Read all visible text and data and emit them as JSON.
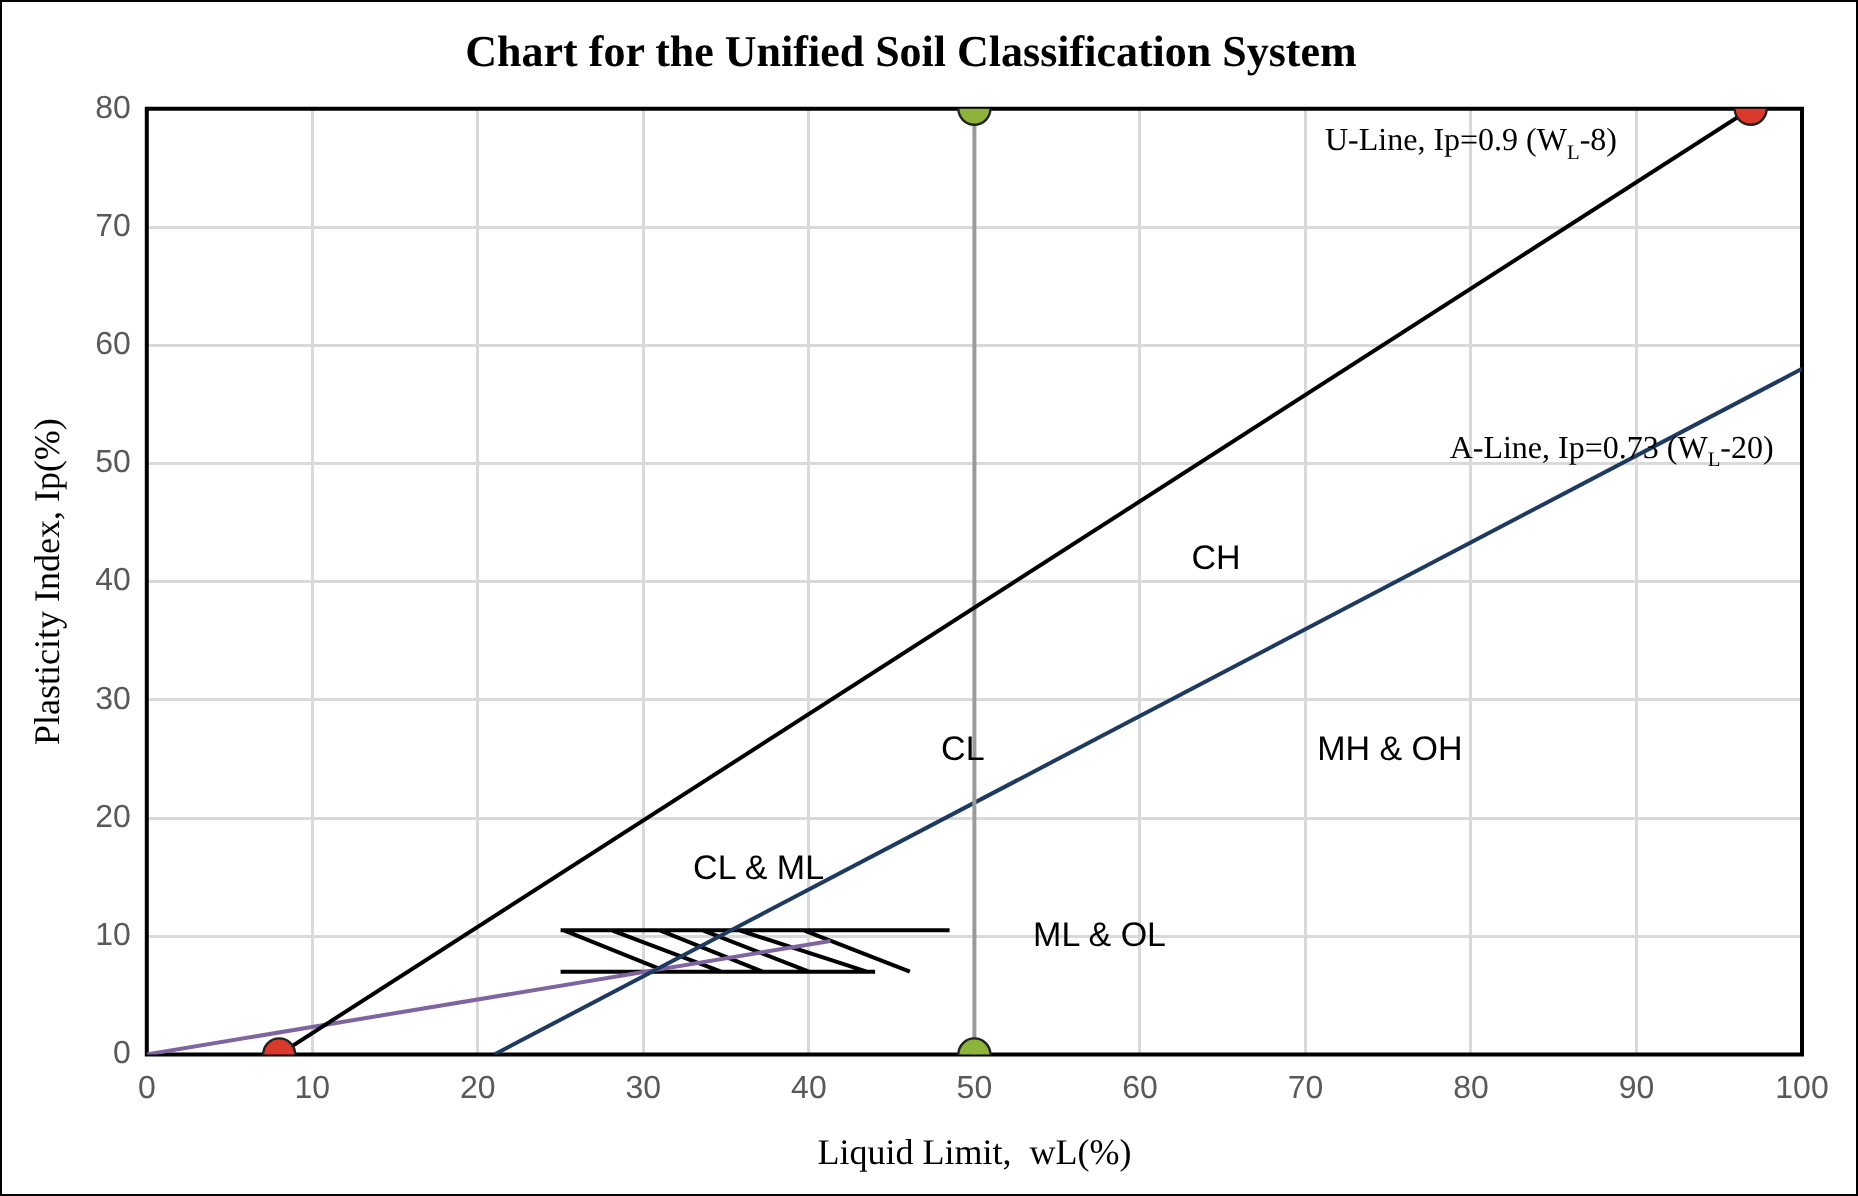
{
  "chart_data": {
    "type": "line",
    "title": "Chart for the Unified Soil Classification System",
    "xlabel": "Liquid Limit,  wL(%)",
    "ylabel": "Plasticity Index, Ip(%)",
    "xlim": [
      0,
      100
    ],
    "xticks": [
      0,
      10,
      20,
      30,
      40,
      50,
      60,
      70,
      80,
      90,
      100
    ],
    "ylim": [
      0,
      80
    ],
    "yticks": [
      0,
      10,
      20,
      30,
      40,
      50,
      60,
      70,
      80
    ],
    "grid": true,
    "legend": false,
    "series": [
      {
        "x": [
          8,
          96.9
        ],
        "values": [
          0,
          80
        ],
        "color": "#000000",
        "marker": "circle",
        "colors": [
          "#d93a2b",
          "#d93a2b"
        ]
      },
      {
        "x": [
          21,
          100
        ],
        "values": [
          0,
          58
        ],
        "color": "#1f3a5f",
        "marker": "none"
      },
      {
        "x": [
          50,
          50
        ],
        "values": [
          0,
          80
        ],
        "color": "#9a9a9a",
        "marker": "circle",
        "colors": [
          "#8db33a",
          "#8db33a"
        ]
      },
      {
        "x": [
          0,
          41.3
        ],
        "values": [
          0,
          9.6
        ],
        "color": "#8064a2",
        "marker": "none"
      },
      {
        "x": [
          25,
          48.5,
          null,
          25,
          44,
          null,
          25.2,
          31.4,
          null,
          28.1,
          34.7,
          null,
          31,
          37.2,
          null,
          33.6,
          40,
          null,
          35.8,
          43.5,
          null,
          39.7,
          46.1
        ],
        "values": [
          10.5,
          10.5,
          null,
          7,
          7,
          null,
          10.5,
          7,
          null,
          10.5,
          7,
          null,
          10.5,
          7,
          null,
          10.5,
          7,
          null,
          10.5,
          7,
          null,
          10.5,
          7
        ],
        "color": "#000000",
        "marker": "none"
      }
    ],
    "annotations": [
      "U-Line, Ip=0.9 (W$_{L}$-8)",
      "A-Line, Ip=0.73 (W$_{L}$-20)",
      "CH",
      "CL",
      "MH & OH",
      "CL & ML",
      "ML & OL"
    ]
  }
}
